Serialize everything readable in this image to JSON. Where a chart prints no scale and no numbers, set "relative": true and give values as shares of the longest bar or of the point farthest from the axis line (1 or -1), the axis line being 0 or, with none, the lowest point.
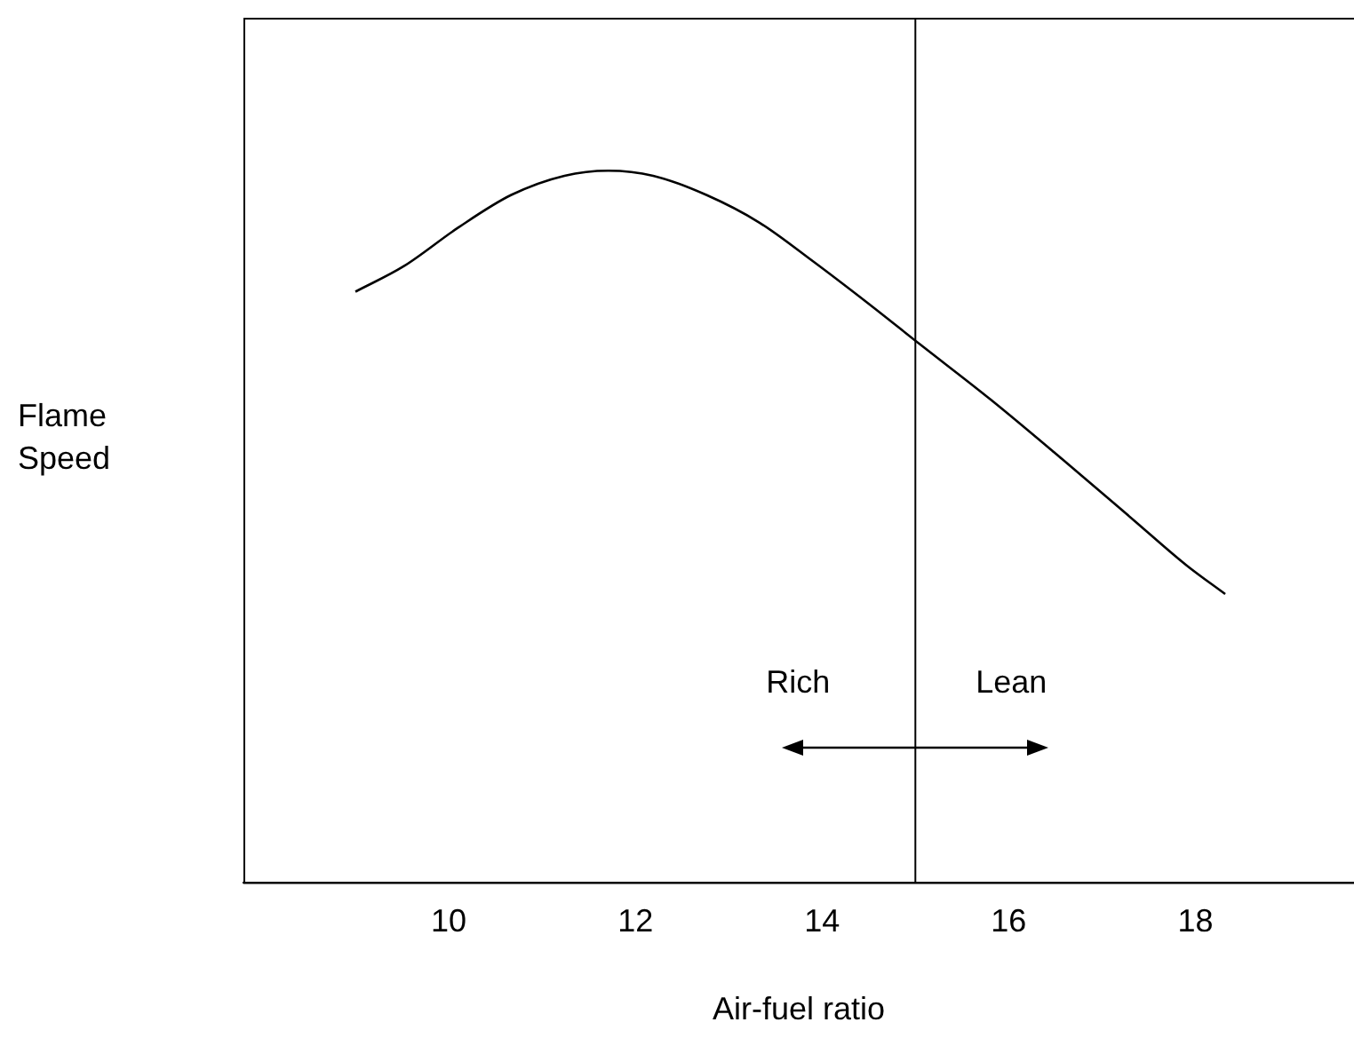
{
  "chart_data": {
    "type": "line",
    "xlabel": "Air-fuel ratio",
    "ylabel": "Flame Speed",
    "relative": true,
    "grid": false,
    "legend": false,
    "marker": "none",
    "line_style": "solid",
    "xlim": [
      7.8,
      19.7
    ],
    "xticks": [
      10,
      12,
      14,
      16,
      18
    ],
    "series": [
      {
        "color": "#000000",
        "x": [
          9.0,
          9.52,
          10.1,
          10.67,
          11.24,
          11.71,
          12.19,
          12.76,
          13.33,
          13.9,
          14.48,
          15.05,
          15.81,
          16.57,
          17.33,
          17.9,
          18.32
        ],
        "values": [
          0.83,
          0.866,
          0.92,
          0.966,
          0.993,
          1.0,
          0.993,
          0.966,
          0.927,
          0.873,
          0.815,
          0.756,
          0.678,
          0.595,
          0.51,
          0.446,
          0.405
        ]
      }
    ],
    "ref_lines": [
      {
        "axis": "x",
        "value": 15,
        "color": "#000000"
      }
    ],
    "annotations": [
      "Rich",
      "Lean"
    ]
  }
}
